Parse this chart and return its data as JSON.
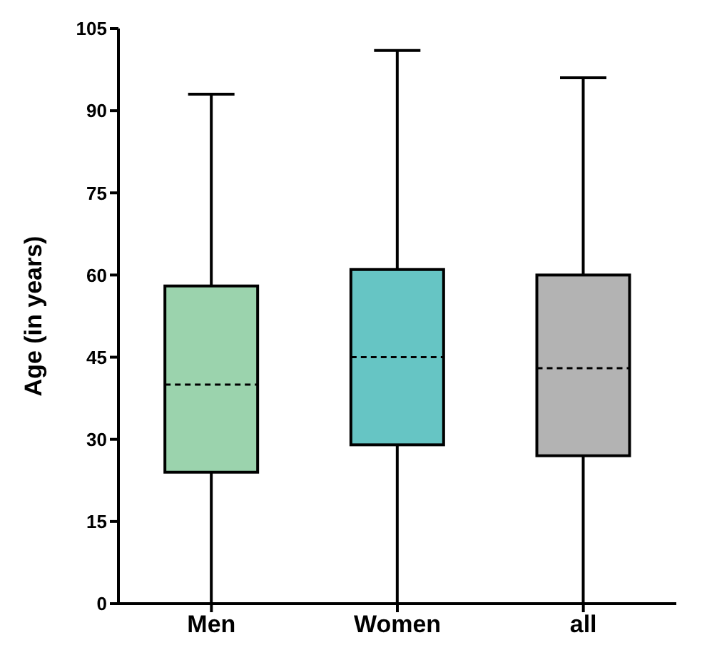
{
  "chart_data": {
    "type": "box",
    "ylabel": "Age (in years)",
    "categories": [
      "Men",
      "Women",
      "all"
    ],
    "colors": [
      "#9bd3ad",
      "#66c5c4",
      "#b3b3b3"
    ],
    "boxes": [
      {
        "low": 0,
        "q1": 24,
        "median": 40,
        "q3": 58,
        "high": 93
      },
      {
        "low": 0,
        "q1": 29,
        "median": 45,
        "q3": 61,
        "high": 101
      },
      {
        "low": 0,
        "q1": 27,
        "median": 43,
        "q3": 60,
        "high": 96
      }
    ],
    "ylim": [
      0,
      105
    ],
    "yticks": [
      0,
      15,
      30,
      45,
      60,
      75,
      90,
      105
    ],
    "grid": false,
    "legend": false
  }
}
